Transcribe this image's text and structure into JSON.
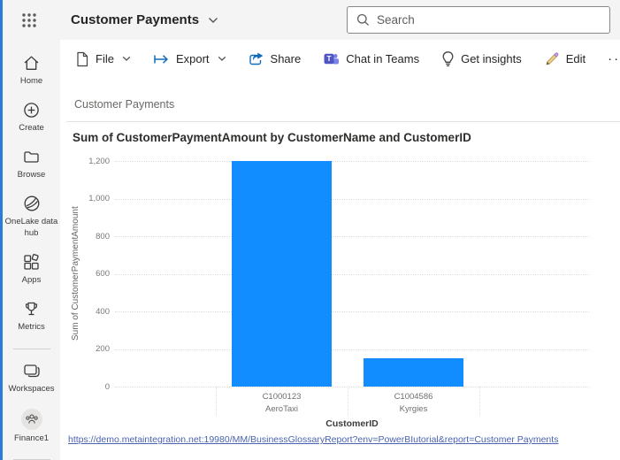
{
  "topbar": {
    "title": "Customer Payments",
    "search_placeholder": "Search"
  },
  "sidebar": {
    "items": [
      {
        "label": "Home"
      },
      {
        "label": "Create"
      },
      {
        "label": "Browse"
      },
      {
        "label": "OneLake data hub"
      },
      {
        "label": "Apps"
      },
      {
        "label": "Metrics"
      },
      {
        "label": "Workspaces"
      },
      {
        "label": "Finance1"
      }
    ]
  },
  "toolbar": {
    "file_label": "File",
    "export_label": "Export",
    "share_label": "Share",
    "chat_label": "Chat in Teams",
    "insights_label": "Get insights",
    "edit_label": "Edit",
    "more_label": "···"
  },
  "report": {
    "page_name": "Customer Payments",
    "link_text": "https://demo.metaintegration.net:19980/MM/BusinessGlossaryReport?env=PowerBIutorial&report=Customer Payments"
  },
  "chart_data": {
    "type": "bar",
    "title": "Sum of CustomerPaymentAmount by CustomerName and CustomerID",
    "xlabel": "CustomerID",
    "ylabel": "Sum of CustomerPaymentAmount",
    "categories": [
      {
        "customer_id": "C1000123",
        "customer_name": "AeroTaxi"
      },
      {
        "customer_id": "C1004586",
        "customer_name": "Kyrgies"
      }
    ],
    "values": [
      1200,
      150
    ],
    "ylim": [
      0,
      1200
    ],
    "ytick_interval": 200,
    "ytick_labels": [
      "0",
      "200",
      "400",
      "600",
      "800",
      "1,000",
      "1,200"
    ],
    "bar_color": "#118DFF",
    "grid": "dotted-horizontal",
    "legend": "none"
  }
}
